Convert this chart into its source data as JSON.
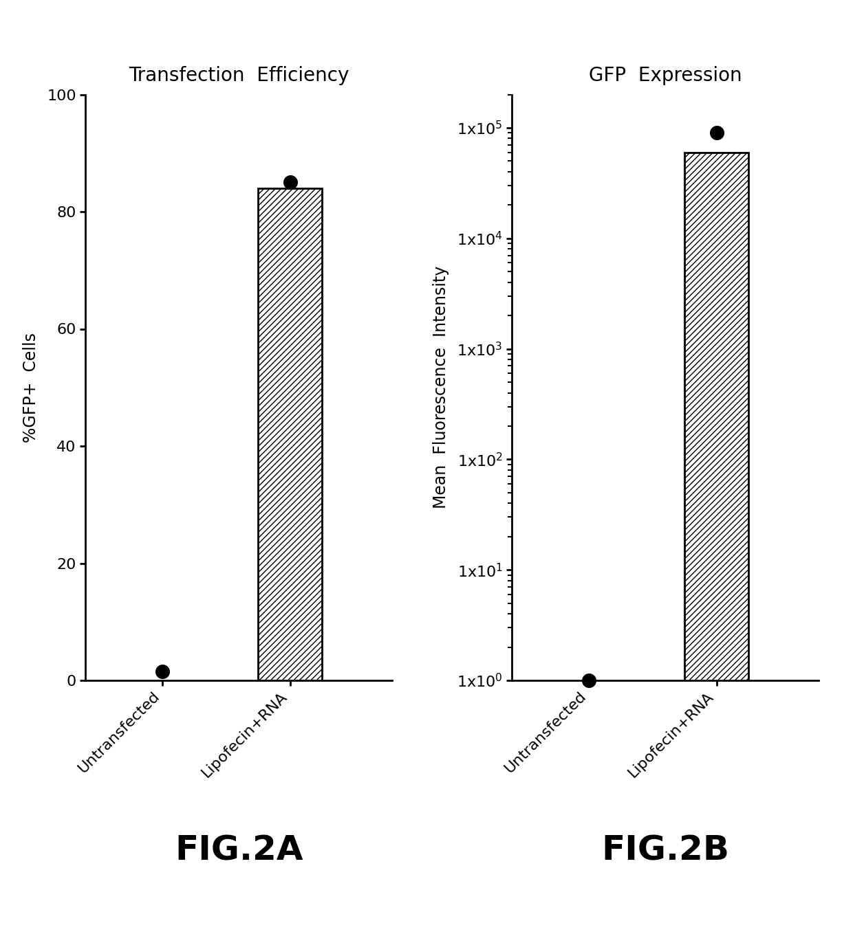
{
  "fig2a_title": "Transfection  Efficiency",
  "fig2b_title": "GFP  Expression",
  "fig2a_ylabel": "%GFP+  Cells",
  "fig2b_ylabel": "Mean  Fluorescence  Intensity",
  "categories": [
    "Untransfected",
    "Lipofecin+RNA"
  ],
  "fig2a_bar_values": [
    0,
    84
  ],
  "fig2a_dot_values": [
    1.5,
    85
  ],
  "fig2a_ylim": [
    0,
    100
  ],
  "fig2a_yticks": [
    0,
    20,
    40,
    60,
    80,
    100
  ],
  "fig2b_bar_values": [
    1,
    60000
  ],
  "fig2b_dot_values": [
    1.0,
    90000
  ],
  "fig_label_a": "FIG.2A",
  "fig_label_b": "FIG.2B",
  "hatch_pattern": "////",
  "bar_color": "white",
  "bar_edgecolor": "black",
  "dot_color": "black",
  "dot_size": 200,
  "background_color": "white",
  "title_fontsize": 20,
  "label_fontsize": 17,
  "tick_fontsize": 16,
  "figlabel_fontsize": 36,
  "ytick_labels_log": [
    "1x10$^{0}$",
    "1x10$^{1}$",
    "1x10$^{2}$",
    "1x10$^{3}$",
    "1x10$^{4}$",
    "1x10$^{5}$"
  ]
}
